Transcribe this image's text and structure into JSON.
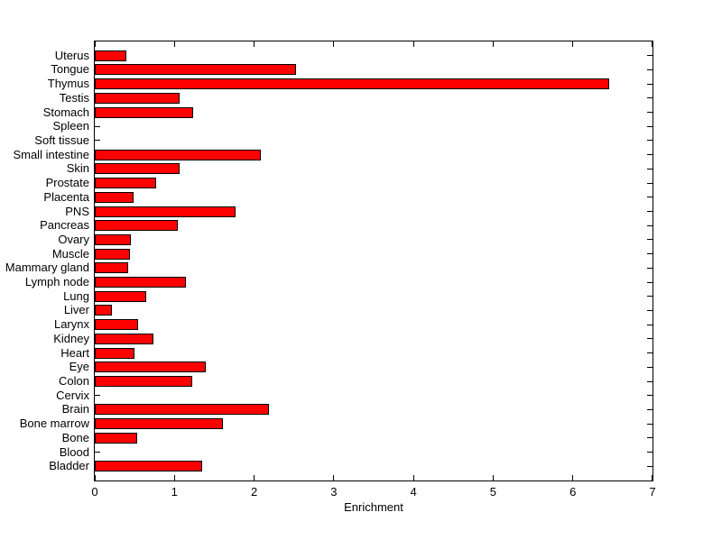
{
  "figure": {
    "background_color": "#ffffff",
    "axes_color": "#000000",
    "text_color": "#000000"
  },
  "chart_data": {
    "type": "bar",
    "orientation": "horizontal",
    "title": "",
    "xlabel": "Enrichment",
    "ylabel": "",
    "xlim": [
      0,
      7
    ],
    "x_ticks": [
      "0",
      "1",
      "2",
      "3",
      "4",
      "5",
      "6",
      "7"
    ],
    "grid": false,
    "legend": false,
    "bar_color": "#ff0000",
    "bar_edge_color": "#000000",
    "category_order": "top-to-bottom",
    "categories": [
      "Uterus",
      "Tongue",
      "Thymus",
      "Testis",
      "Stomach",
      "Spleen",
      "Soft tissue",
      "Small intestine",
      "Skin",
      "Prostate",
      "Placenta",
      "PNS",
      "Pancreas",
      "Ovary",
      "Muscle",
      "Mammary gland",
      "Lymph node",
      "Lung",
      "Liver",
      "Larynx",
      "Kidney",
      "Heart",
      "Eye",
      "Colon",
      "Cervix",
      "Brain",
      "Bone marrow",
      "Bone",
      "Blood",
      "Bladder"
    ],
    "values": [
      0.4,
      2.53,
      6.46,
      1.07,
      1.23,
      0,
      0,
      2.08,
      1.06,
      0.77,
      0.49,
      1.77,
      1.04,
      0.45,
      0.44,
      0.42,
      1.14,
      0.65,
      0.22,
      0.54,
      0.74,
      0.5,
      1.39,
      1.22,
      0,
      2.19,
      1.61,
      0.53,
      0,
      1.35
    ]
  }
}
